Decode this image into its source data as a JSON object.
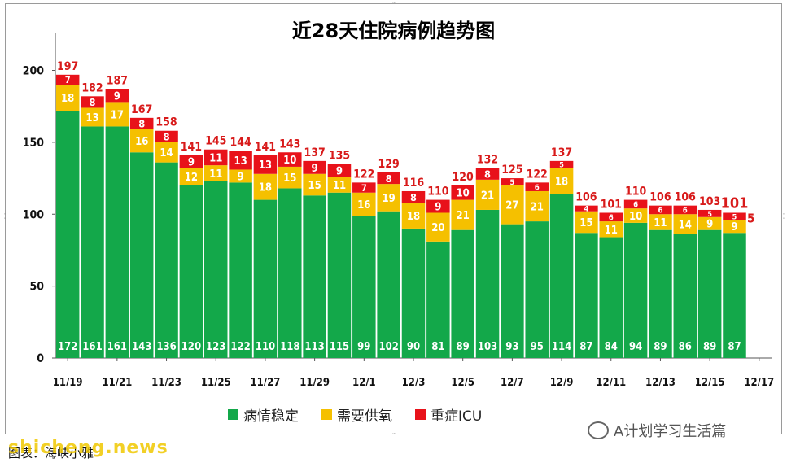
{
  "source_label": "图表：海峡小雅",
  "watermark_site": "shicheng.news",
  "watermark_account": "A计划学习生活篇",
  "chart_data": {
    "type": "bar",
    "stacked": true,
    "title": "近28天住院病例趋势图",
    "categories": [
      "11/19",
      "11/20",
      "11/21",
      "11/22",
      "11/23",
      "11/24",
      "11/25",
      "11/26",
      "11/27",
      "11/28",
      "11/29",
      "11/30",
      "12/1",
      "12/2",
      "12/3",
      "12/4",
      "12/5",
      "12/6",
      "12/7",
      "12/8",
      "12/9",
      "12/10",
      "12/11",
      "12/12",
      "12/13",
      "12/14",
      "12/15",
      "12/16",
      "12/17"
    ],
    "xtick_labels": [
      "11/19",
      "11/21",
      "11/23",
      "11/25",
      "11/27",
      "11/29",
      "12/1",
      "12/3",
      "12/5",
      "12/7",
      "12/9",
      "12/11",
      "12/13",
      "12/15",
      "12/17"
    ],
    "yticks": [
      0,
      50,
      100,
      150,
      200
    ],
    "ylim": [
      0,
      215
    ],
    "legend": "bottom",
    "grid": false,
    "series": [
      {
        "name": "病情稳定",
        "color": "#13a84a",
        "values": [
          172,
          161,
          161,
          143,
          136,
          120,
          123,
          122,
          110,
          118,
          113,
          115,
          99,
          102,
          90,
          81,
          89,
          103,
          93,
          95,
          114,
          87,
          84,
          94,
          89,
          86,
          89,
          87,
          null
        ]
      },
      {
        "name": "需要供氧",
        "color": "#f5c000",
        "values": [
          18,
          13,
          17,
          16,
          14,
          12,
          11,
          9,
          18,
          15,
          15,
          11,
          16,
          19,
          18,
          20,
          21,
          21,
          27,
          21,
          18,
          15,
          11,
          10,
          11,
          14,
          9,
          9,
          null
        ]
      },
      {
        "name": "重症ICU",
        "color": "#e8121a",
        "values": [
          7,
          8,
          9,
          8,
          8,
          9,
          11,
          13,
          13,
          10,
          9,
          9,
          7,
          8,
          8,
          9,
          10,
          8,
          5,
          6,
          5,
          4,
          6,
          6,
          6,
          6,
          5,
          5,
          null
        ]
      }
    ],
    "totals": [
      197,
      182,
      187,
      167,
      158,
      141,
      145,
      144,
      141,
      143,
      137,
      135,
      122,
      129,
      116,
      110,
      120,
      132,
      125,
      122,
      137,
      106,
      101,
      110,
      106,
      106,
      103,
      101,
      null
    ]
  }
}
